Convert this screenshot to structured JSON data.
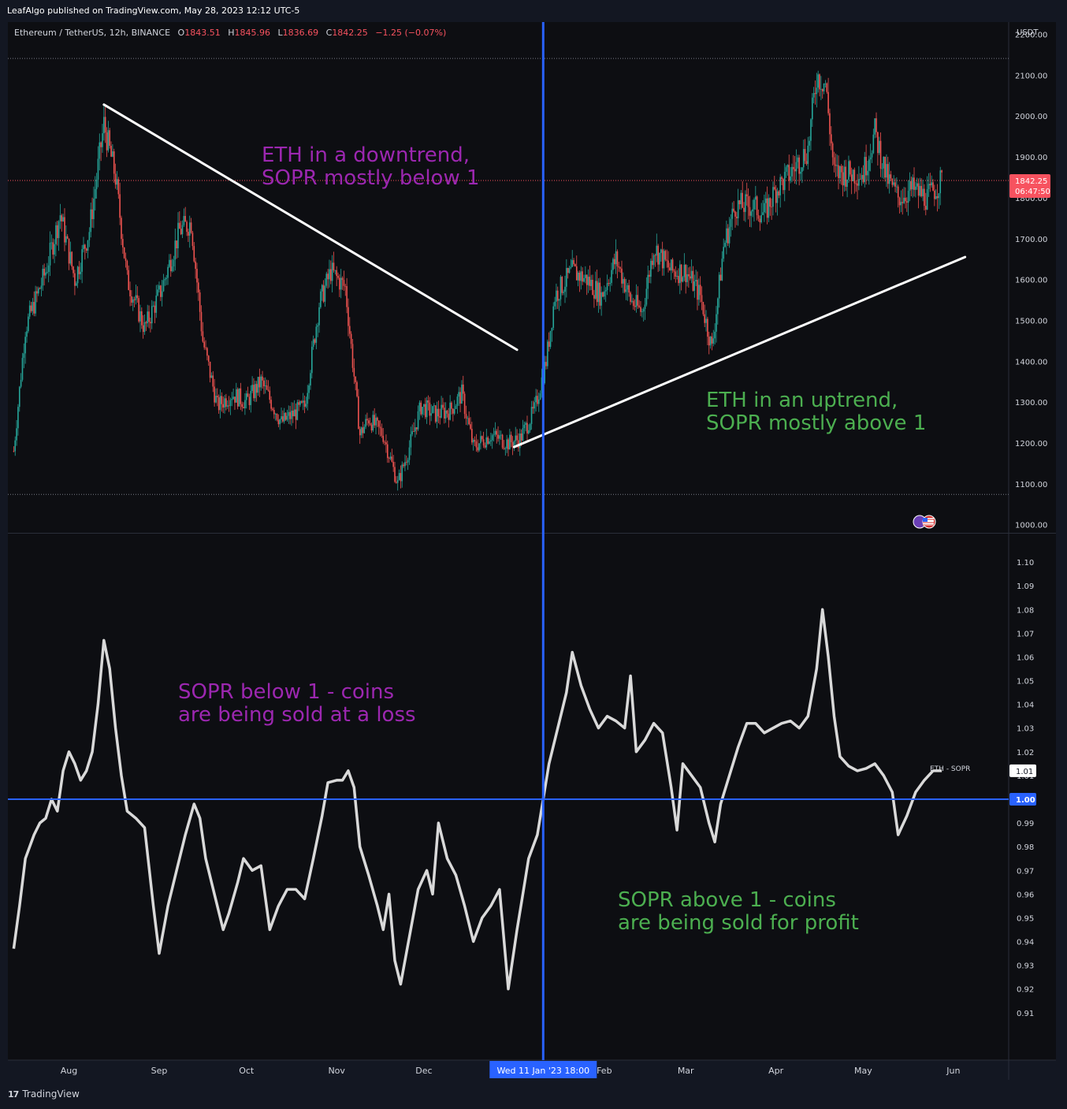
{
  "header": {
    "publish_text": "LeafAlgo published on TradingView.com, May 28, 2023 12:12 UTC-5",
    "symbol": "Ethereum / TetherUS, 12h, BINANCE",
    "o_label": "O",
    "o_value": "1843.51",
    "h_label": "H",
    "h_value": "1845.96",
    "l_label": "L",
    "l_value": "1836.69",
    "c_label": "C",
    "c_value": "1842.25",
    "change": "−1.25 (−0.07%)"
  },
  "footer": {
    "brand": "TradingView"
  },
  "colors": {
    "background": "#131722",
    "pane": "#0d0e12",
    "grid_text": "#d1d4dc",
    "up": "#26a69a",
    "down": "#ef5350",
    "crosshair": "#2962ff",
    "sopr_line": "#d9d9d9",
    "purple_note": "#9c27b0",
    "green_note": "#4caf50",
    "price_badge": "#f7525f"
  },
  "chart_data": [
    {
      "type": "candlestick",
      "title": "Ethereum / TetherUS, 12h, BINANCE",
      "axis_unit": "USDT",
      "ylim": [
        980,
        2230
      ],
      "yticks": [
        "2200.00",
        "2100.00",
        "2000.00",
        "1900.00",
        "1800.00",
        "1700.00",
        "1600.00",
        "1500.00",
        "1400.00",
        "1300.00",
        "1200.00",
        "1100.00",
        "1000.00"
      ],
      "ytick_values": [
        2200,
        2100,
        2000,
        1900,
        1800,
        1700,
        1600,
        1500,
        1400,
        1300,
        1200,
        1100,
        1000
      ],
      "last_price_label": "1842.25",
      "countdown_label": "06:47:50",
      "last_price": 1842.25,
      "high_ref": 2141,
      "low_ref": 1074,
      "price_path": [
        [
          "2022-07-13",
          1180
        ],
        [
          "2022-07-17",
          1480
        ],
        [
          "2022-07-24",
          1620
        ],
        [
          "2022-07-29",
          1760
        ],
        [
          "2022-08-03",
          1600
        ],
        [
          "2022-08-08",
          1720
        ],
        [
          "2022-08-13",
          1980
        ],
        [
          "2022-08-17",
          1850
        ],
        [
          "2022-08-21",
          1600
        ],
        [
          "2022-08-27",
          1480
        ],
        [
          "2022-09-02",
          1580
        ],
        [
          "2022-09-08",
          1720
        ],
        [
          "2022-09-12",
          1740
        ],
        [
          "2022-09-16",
          1450
        ],
        [
          "2022-09-21",
          1290
        ],
        [
          "2022-09-26",
          1320
        ],
        [
          "2022-10-01",
          1300
        ],
        [
          "2022-10-06",
          1350
        ],
        [
          "2022-10-13",
          1250
        ],
        [
          "2022-10-21",
          1290
        ],
        [
          "2022-10-26",
          1540
        ],
        [
          "2022-10-30",
          1620
        ],
        [
          "2022-11-04",
          1580
        ],
        [
          "2022-11-09",
          1220
        ],
        [
          "2022-11-12",
          1260
        ],
        [
          "2022-11-17",
          1220
        ],
        [
          "2022-11-22",
          1100
        ],
        [
          "2022-11-26",
          1190
        ],
        [
          "2022-11-30",
          1290
        ],
        [
          "2022-12-05",
          1270
        ],
        [
          "2022-12-10",
          1280
        ],
        [
          "2022-12-14",
          1320
        ],
        [
          "2022-12-18",
          1190
        ],
        [
          "2022-12-24",
          1220
        ],
        [
          "2022-12-30",
          1200
        ],
        [
          "2023-01-03",
          1210
        ],
        [
          "2023-01-08",
          1280
        ],
        [
          "2023-01-12",
          1400
        ],
        [
          "2023-01-15",
          1560
        ],
        [
          "2023-01-21",
          1620
        ],
        [
          "2023-01-26",
          1600
        ],
        [
          "2023-01-31",
          1560
        ],
        [
          "2023-02-05",
          1650
        ],
        [
          "2023-02-10",
          1550
        ],
        [
          "2023-02-14",
          1520
        ],
        [
          "2023-02-18",
          1680
        ],
        [
          "2023-02-24",
          1620
        ],
        [
          "2023-03-01",
          1620
        ],
        [
          "2023-03-06",
          1560
        ],
        [
          "2023-03-10",
          1430
        ],
        [
          "2023-03-14",
          1680
        ],
        [
          "2023-03-18",
          1780
        ],
        [
          "2023-03-24",
          1780
        ],
        [
          "2023-03-28",
          1760
        ],
        [
          "2023-04-01",
          1820
        ],
        [
          "2023-04-06",
          1860
        ],
        [
          "2023-04-12",
          1920
        ],
        [
          "2023-04-15",
          2100
        ],
        [
          "2023-04-18",
          2080
        ],
        [
          "2023-04-21",
          1860
        ],
        [
          "2023-04-26",
          1860
        ],
        [
          "2023-05-01",
          1860
        ],
        [
          "2023-05-05",
          1960
        ],
        [
          "2023-05-09",
          1850
        ],
        [
          "2023-05-13",
          1800
        ],
        [
          "2023-05-18",
          1820
        ],
        [
          "2023-05-23",
          1800
        ],
        [
          "2023-05-28",
          1842
        ]
      ]
    },
    {
      "type": "line",
      "series": [
        {
          "name": "ETH - SOPR"
        }
      ],
      "last_value_label": "1.01",
      "ylim": [
        0.89,
        1.112
      ],
      "yticks": [
        "1.10",
        "1.09",
        "1.08",
        "1.07",
        "1.06",
        "1.05",
        "1.04",
        "1.03",
        "1.02",
        "1.01",
        "1.00",
        "0.99",
        "0.98",
        "0.97",
        "0.96",
        "0.95",
        "0.94",
        "0.93",
        "0.92",
        "0.91"
      ],
      "ytick_values": [
        1.1,
        1.09,
        1.08,
        1.07,
        1.06,
        1.05,
        1.04,
        1.03,
        1.02,
        1.01,
        1.0,
        0.99,
        0.98,
        0.97,
        0.96,
        0.95,
        0.94,
        0.93,
        0.92,
        0.91
      ],
      "reference_line": 1.0,
      "reference_label": "1.00",
      "points": [
        [
          "2022-07-13",
          0.937
        ],
        [
          "2022-07-15",
          0.955
        ],
        [
          "2022-07-17",
          0.975
        ],
        [
          "2022-07-20",
          0.985
        ],
        [
          "2022-07-22",
          0.99
        ],
        [
          "2022-07-24",
          0.992
        ],
        [
          "2022-07-26",
          1.0
        ],
        [
          "2022-07-28",
          0.995
        ],
        [
          "2022-07-30",
          1.012
        ],
        [
          "2022-08-01",
          1.02
        ],
        [
          "2022-08-03",
          1.015
        ],
        [
          "2022-08-05",
          1.008
        ],
        [
          "2022-08-07",
          1.012
        ],
        [
          "2022-08-09",
          1.02
        ],
        [
          "2022-08-11",
          1.04
        ],
        [
          "2022-08-13",
          1.067
        ],
        [
          "2022-08-15",
          1.055
        ],
        [
          "2022-08-17",
          1.03
        ],
        [
          "2022-08-19",
          1.01
        ],
        [
          "2022-08-21",
          0.995
        ],
        [
          "2022-08-24",
          0.992
        ],
        [
          "2022-08-27",
          0.988
        ],
        [
          "2022-08-30",
          0.955
        ],
        [
          "2022-09-01",
          0.935
        ],
        [
          "2022-09-04",
          0.955
        ],
        [
          "2022-09-07",
          0.97
        ],
        [
          "2022-09-10",
          0.985
        ],
        [
          "2022-09-13",
          0.998
        ],
        [
          "2022-09-15",
          0.992
        ],
        [
          "2022-09-17",
          0.975
        ],
        [
          "2022-09-20",
          0.96
        ],
        [
          "2022-09-23",
          0.945
        ],
        [
          "2022-09-25",
          0.952
        ],
        [
          "2022-09-28",
          0.965
        ],
        [
          "2022-09-30",
          0.975
        ],
        [
          "2022-10-03",
          0.97
        ],
        [
          "2022-10-06",
          0.972
        ],
        [
          "2022-10-09",
          0.945
        ],
        [
          "2022-10-12",
          0.955
        ],
        [
          "2022-10-15",
          0.962
        ],
        [
          "2022-10-18",
          0.962
        ],
        [
          "2022-10-21",
          0.958
        ],
        [
          "2022-10-24",
          0.975
        ],
        [
          "2022-10-27",
          0.993
        ],
        [
          "2022-10-29",
          1.007
        ],
        [
          "2022-11-01",
          1.008
        ],
        [
          "2022-11-03",
          1.008
        ],
        [
          "2022-11-05",
          1.012
        ],
        [
          "2022-11-07",
          1.005
        ],
        [
          "2022-11-09",
          0.98
        ],
        [
          "2022-11-12",
          0.968
        ],
        [
          "2022-11-15",
          0.955
        ],
        [
          "2022-11-17",
          0.945
        ],
        [
          "2022-11-19",
          0.96
        ],
        [
          "2022-11-21",
          0.932
        ],
        [
          "2022-11-23",
          0.922
        ],
        [
          "2022-11-26",
          0.942
        ],
        [
          "2022-11-29",
          0.962
        ],
        [
          "2022-12-02",
          0.97
        ],
        [
          "2022-12-04",
          0.96
        ],
        [
          "2022-12-06",
          0.99
        ],
        [
          "2022-12-09",
          0.975
        ],
        [
          "2022-12-12",
          0.968
        ],
        [
          "2022-12-15",
          0.955
        ],
        [
          "2022-12-18",
          0.94
        ],
        [
          "2022-12-21",
          0.95
        ],
        [
          "2022-12-24",
          0.955
        ],
        [
          "2022-12-27",
          0.962
        ],
        [
          "2022-12-30",
          0.92
        ],
        [
          "2023-01-02",
          0.945
        ],
        [
          "2023-01-04",
          0.96
        ],
        [
          "2023-01-06",
          0.975
        ],
        [
          "2023-01-09",
          0.985
        ],
        [
          "2023-01-11",
          1.0
        ],
        [
          "2023-01-13",
          1.015
        ],
        [
          "2023-01-16",
          1.03
        ],
        [
          "2023-01-19",
          1.045
        ],
        [
          "2023-01-21",
          1.062
        ],
        [
          "2023-01-24",
          1.048
        ],
        [
          "2023-01-27",
          1.038
        ],
        [
          "2023-01-30",
          1.03
        ],
        [
          "2023-02-02",
          1.035
        ],
        [
          "2023-02-05",
          1.033
        ],
        [
          "2023-02-08",
          1.03
        ],
        [
          "2023-02-10",
          1.052
        ],
        [
          "2023-02-12",
          1.02
        ],
        [
          "2023-02-15",
          1.025
        ],
        [
          "2023-02-18",
          1.032
        ],
        [
          "2023-02-21",
          1.028
        ],
        [
          "2023-02-24",
          1.005
        ],
        [
          "2023-02-26",
          0.987
        ],
        [
          "2023-02-28",
          1.015
        ],
        [
          "2023-03-03",
          1.01
        ],
        [
          "2023-03-06",
          1.005
        ],
        [
          "2023-03-09",
          0.99
        ],
        [
          "2023-03-11",
          0.982
        ],
        [
          "2023-03-13",
          0.998
        ],
        [
          "2023-03-16",
          1.01
        ],
        [
          "2023-03-19",
          1.022
        ],
        [
          "2023-03-22",
          1.032
        ],
        [
          "2023-03-25",
          1.032
        ],
        [
          "2023-03-28",
          1.028
        ],
        [
          "2023-03-31",
          1.03
        ],
        [
          "2023-04-03",
          1.032
        ],
        [
          "2023-04-06",
          1.033
        ],
        [
          "2023-04-09",
          1.03
        ],
        [
          "2023-04-12",
          1.035
        ],
        [
          "2023-04-15",
          1.055
        ],
        [
          "2023-04-17",
          1.08
        ],
        [
          "2023-04-19",
          1.06
        ],
        [
          "2023-04-21",
          1.035
        ],
        [
          "2023-04-23",
          1.018
        ],
        [
          "2023-04-26",
          1.014
        ],
        [
          "2023-04-29",
          1.012
        ],
        [
          "2023-05-02",
          1.013
        ],
        [
          "2023-05-05",
          1.015
        ],
        [
          "2023-05-08",
          1.01
        ],
        [
          "2023-05-11",
          1.003
        ],
        [
          "2023-05-13",
          0.985
        ],
        [
          "2023-05-16",
          0.993
        ],
        [
          "2023-05-19",
          1.003
        ],
        [
          "2023-05-22",
          1.008
        ],
        [
          "2023-05-25",
          1.012
        ],
        [
          "2023-05-28",
          1.012
        ]
      ]
    }
  ],
  "x_axis": {
    "labels": [
      "Aug",
      "Sep",
      "Oct",
      "Nov",
      "Dec",
      "Feb",
      "Mar",
      "Apr",
      "May",
      "Jun"
    ],
    "label_dates": [
      "2022-08-01",
      "2022-09-01",
      "2022-10-01",
      "2022-11-01",
      "2022-12-01",
      "2023-02-01",
      "2023-03-01",
      "2023-04-01",
      "2023-05-01",
      "2023-06-01"
    ],
    "start": "2022-07-11",
    "end": "2023-06-20",
    "crosshair_date": "2023-01-11",
    "crosshair_label": "Wed 11 Jan '23   18:00"
  },
  "trendlines": [
    {
      "name": "downtrend-line",
      "from": [
        "2022-08-13",
        2028
      ],
      "to": [
        "2023-01-02",
        1428
      ]
    },
    {
      "name": "uptrend-line",
      "from": [
        "2023-01-01",
        1190
      ],
      "to": [
        "2023-06-05",
        1655
      ]
    }
  ],
  "annotations": {
    "downtrend_note": [
      "ETH in a downtrend,",
      "SOPR mostly below 1"
    ],
    "uptrend_note": [
      "ETH in an uptrend,",
      "SOPR mostly above 1"
    ],
    "sopr_below_note": [
      "SOPR below 1 - coins",
      "are being sold at a loss"
    ],
    "sopr_above_note": [
      "SOPR above 1 - coins",
      "are being sold for profit"
    ]
  }
}
